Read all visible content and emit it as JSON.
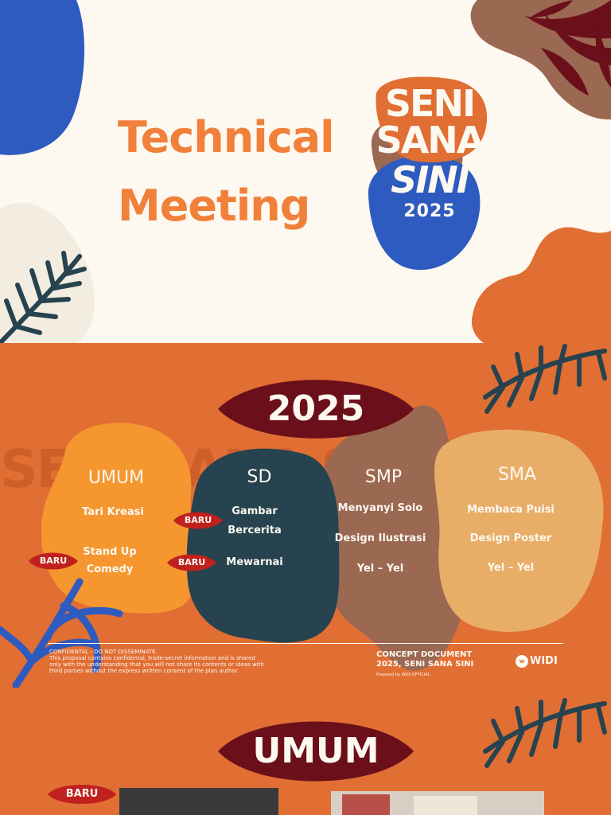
{
  "slide1": {
    "title_line1": "Technical",
    "title_line2": "Meeting",
    "logo": {
      "line1": "SENI",
      "line2": "SANA",
      "line3": "SINI",
      "line4": "2025"
    }
  },
  "slide2": {
    "year": "2025",
    "watermark": "SENI SANA SINI",
    "categories": [
      {
        "title": "UMUM",
        "items": [
          "Tari Kreasi",
          "Stand Up",
          "Comedy"
        ]
      },
      {
        "title": "SD",
        "items": [
          "Gambar",
          "Bercerita",
          "Mewarnai"
        ]
      },
      {
        "title": "SMP",
        "items": [
          "Menyanyi Solo",
          "Design Ilustrasi",
          "Yel – Yel"
        ]
      },
      {
        "title": "SMA",
        "items": [
          "Membaca Puisi",
          "Design Poster",
          "Yel – Yel"
        ]
      }
    ],
    "badge": "BARU",
    "footer": {
      "disclaimer_title": "CONFIDENTAL - DO NOT DISSEMINATE.",
      "disclaimer_body": "This proposal contains confidental, trade-secret information and is shared only with the understanding that you will not share its contents or ideas with third parties without the express written consent of the plan author.",
      "concept_line1": "CONCEPT DOCUMENT",
      "concept_line2": "2025, SENI SANA SINI",
      "prepared": "Prepared by WIDI OFFICIAL",
      "brand": "WIDI"
    }
  },
  "slide3": {
    "title": "UMUM",
    "badge": "BARU"
  },
  "colors": {
    "cream": "#fdf8f0",
    "orange": "#e16e33",
    "title_orange": "#f0803a",
    "dark_red": "#6b0f1a",
    "blue": "#2e5bbf",
    "navy": "#26434f",
    "brown": "#9b6852",
    "sand": "#e8ae68",
    "bright_orange": "#f5962f",
    "badge_red": "#c0201e"
  }
}
